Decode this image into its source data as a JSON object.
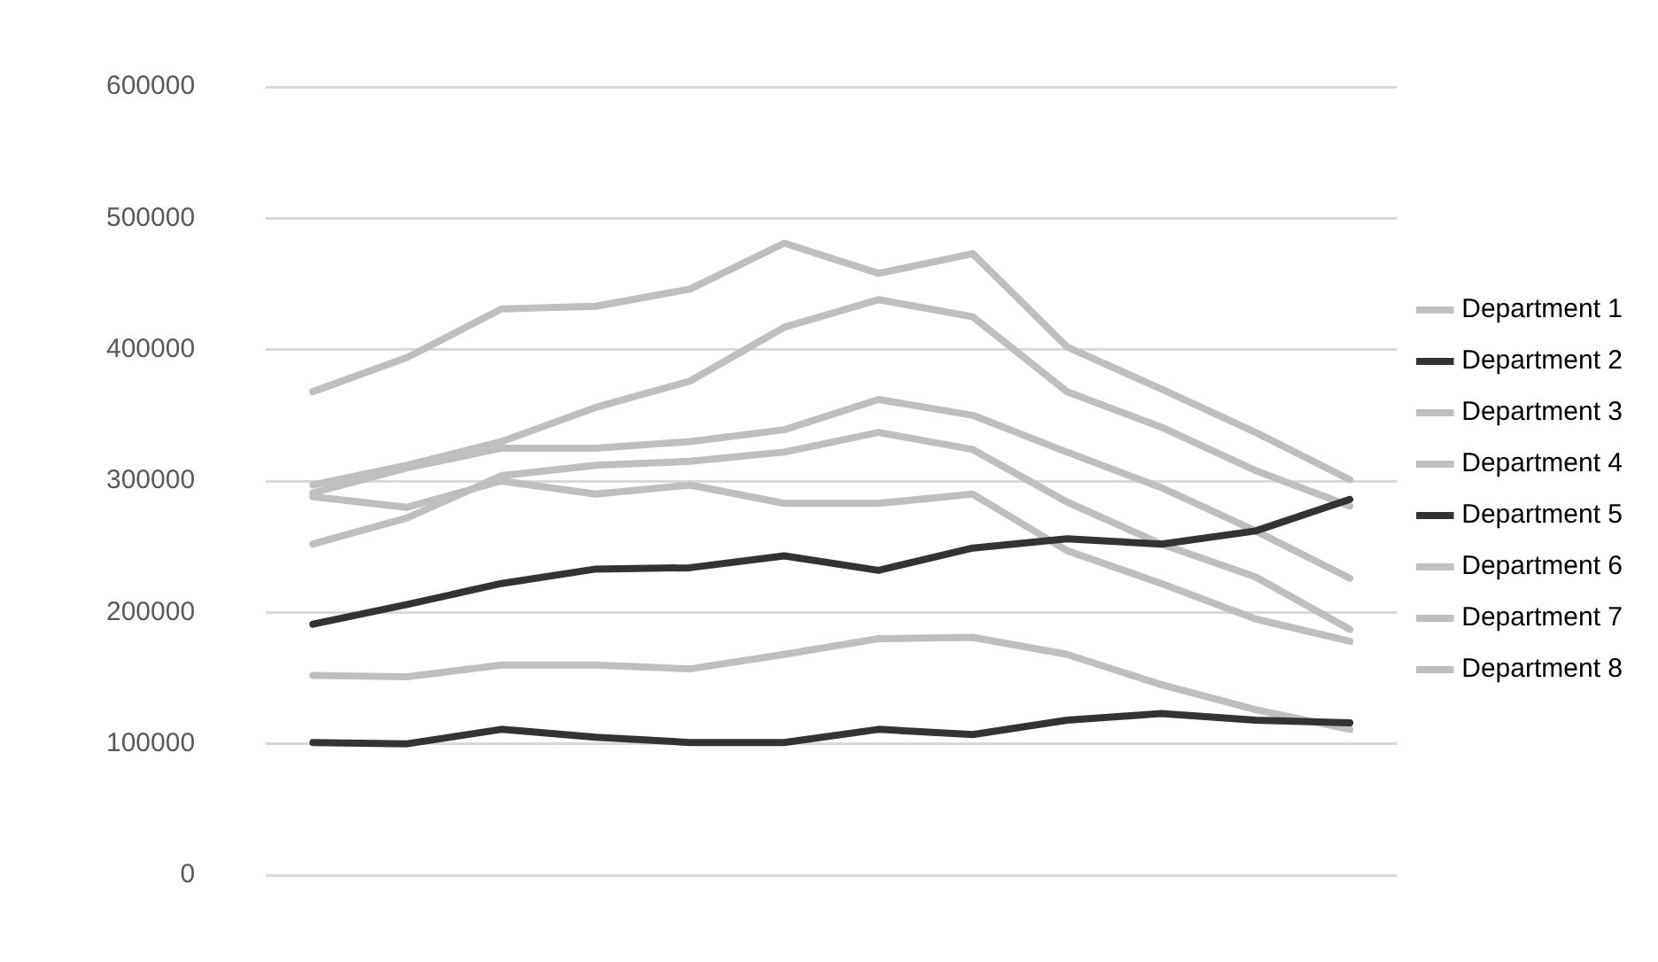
{
  "chart_data": {
    "type": "line",
    "categories": [
      null,
      null,
      null,
      null,
      null,
      null,
      null,
      null,
      null,
      null,
      null,
      null
    ],
    "series": [
      {
        "name": "Department 1",
        "color": "#bfbfbf",
        "values": [
          368000,
          394000,
          431000,
          433000,
          446000,
          481000,
          458000,
          473000,
          402000,
          370000,
          337000,
          301000
        ]
      },
      {
        "name": "Department 2",
        "color": "#333333",
        "values": [
          191000,
          206000,
          222000,
          233000,
          234000,
          243000,
          232000,
          249000,
          256000,
          252000,
          262000,
          286000
        ]
      },
      {
        "name": "Department 3",
        "color": "#bfbfbf",
        "values": [
          297000,
          312000,
          330000,
          356000,
          376000,
          417000,
          438000,
          425000,
          368000,
          341000,
          308000,
          281000
        ]
      },
      {
        "name": "Department 4",
        "color": "#bfbfbf",
        "values": [
          291000,
          310000,
          325000,
          325000,
          330000,
          339000,
          362000,
          350000,
          322000,
          295000,
          262000,
          226000
        ]
      },
      {
        "name": "Department 5",
        "color": "#333333",
        "values": [
          101000,
          100000,
          111000,
          105000,
          101000,
          101000,
          111000,
          107000,
          118000,
          123000,
          118000,
          116000
        ]
      },
      {
        "name": "Department 6",
        "color": "#bfbfbf",
        "values": [
          252000,
          272000,
          304000,
          312000,
          315000,
          322000,
          337000,
          324000,
          284000,
          252000,
          227000,
          187000
        ]
      },
      {
        "name": "Department 7",
        "color": "#bfbfbf",
        "values": [
          288000,
          280000,
          300000,
          290000,
          297000,
          283000,
          283000,
          290000,
          247000,
          222000,
          195000,
          178000
        ]
      },
      {
        "name": "Department 8",
        "color": "#bfbfbf",
        "values": [
          152000,
          151000,
          160000,
          160000,
          157000,
          168000,
          180000,
          181000,
          168000,
          145000,
          126000,
          111000
        ]
      }
    ],
    "ylim": [
      0,
      600000
    ],
    "yticks": [
      0,
      100000,
      200000,
      300000,
      400000,
      500000,
      600000
    ],
    "grid": "y",
    "legend": "right",
    "tick_labels": "y",
    "marker": "none",
    "line_style": "solid"
  }
}
